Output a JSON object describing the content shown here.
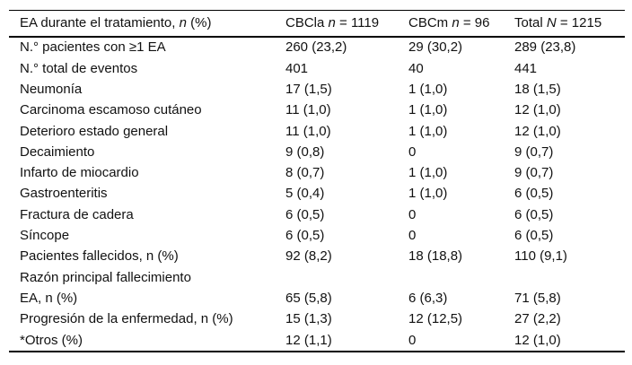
{
  "table": {
    "header": {
      "columns": [
        {
          "pre": "EA durante el tratamiento, ",
          "italic": "n",
          "post": " (%)"
        },
        {
          "pre": "CBCla ",
          "italic": "n",
          "post": " = 1119"
        },
        {
          "pre": "CBCm ",
          "italic": "n",
          "post": " = 96"
        },
        {
          "pre": "Total ",
          "italic": "N",
          "post": " = 1215"
        }
      ]
    },
    "rows": [
      {
        "label": "N.° pacientes con ≥1 EA",
        "cbcla": "260 (23,2)",
        "cbcm": "29 (30,2)",
        "total": "289 (23,8)"
      },
      {
        "label": "N.° total de eventos",
        "cbcla": "401",
        "cbcm": "40",
        "total": "441"
      },
      {
        "label": "Neumonía",
        "cbcla": "17 (1,5)",
        "cbcm": "1 (1,0)",
        "total": "18 (1,5)"
      },
      {
        "label": "Carcinoma escamoso cutáneo",
        "cbcla": "11 (1,0)",
        "cbcm": "1 (1,0)",
        "total": "12 (1,0)"
      },
      {
        "label": "Deterioro estado general",
        "cbcla": "11 (1,0)",
        "cbcm": "1 (1,0)",
        "total": "12 (1,0)"
      },
      {
        "label": "Decaimiento",
        "cbcla": "9 (0,8)",
        "cbcm": "0",
        "total": "9 (0,7)"
      },
      {
        "label": "Infarto de miocardio",
        "cbcla": "8 (0,7)",
        "cbcm": "1 (1,0)",
        "total": "9 (0,7)"
      },
      {
        "label": "Gastroenteritis",
        "cbcla": "5 (0,4)",
        "cbcm": "1 (1,0)",
        "total": "6 (0,5)"
      },
      {
        "label": "Fractura de cadera",
        "cbcla": "6 (0,5)",
        "cbcm": "0",
        "total": "6 (0,5)"
      },
      {
        "label": "Síncope",
        "cbcla": "6 (0,5)",
        "cbcm": "0",
        "total": "6 (0,5)"
      },
      {
        "label": "Pacientes fallecidos, n (%)",
        "cbcla": "92 (8,2)",
        "cbcm": "18 (18,8)",
        "total": "110 (9,1)"
      },
      {
        "label": "Razón principal fallecimiento",
        "cbcla": "",
        "cbcm": "",
        "total": ""
      },
      {
        "label": "EA, n (%)",
        "cbcla": "65 (5,8)",
        "cbcm": "6 (6,3)",
        "total": "71 (5,8)"
      },
      {
        "label": "Progresión de la enfermedad, n (%)",
        "cbcla": "15 (1,3)",
        "cbcm": "12 (12,5)",
        "total": "27 (2,2)"
      },
      {
        "label": "*Otros (%)",
        "cbcla": "12 (1,1)",
        "cbcm": "0",
        "total": "12 (1,0)"
      }
    ],
    "colors": {
      "border": "#000000",
      "text": "#111111",
      "background": "#ffffff"
    }
  }
}
